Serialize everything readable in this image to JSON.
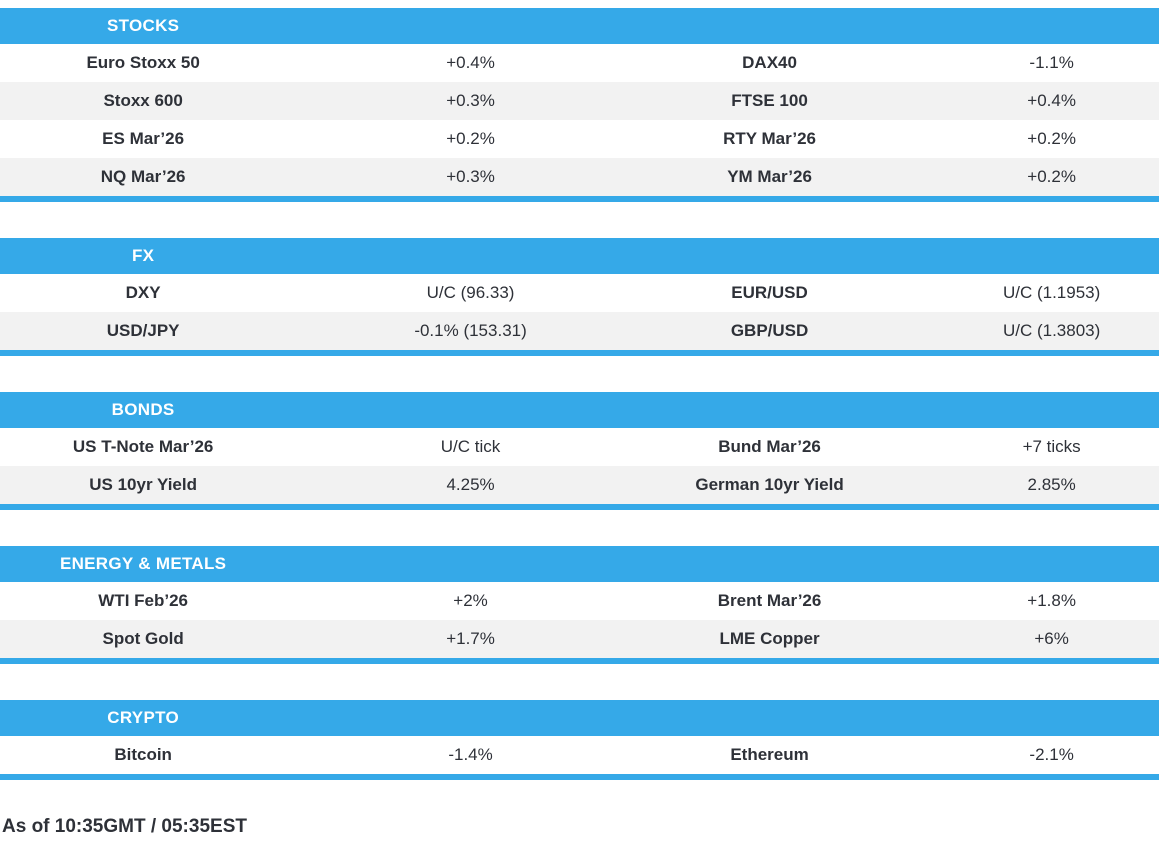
{
  "colors": {
    "accent_blue": "#35a9e8",
    "row_alt_gray": "#f2f2f2",
    "text_dark": "#2e3138",
    "header_text": "#ffffff"
  },
  "sections": [
    {
      "title": "STOCKS",
      "rows": [
        [
          "Euro Stoxx 50",
          "+0.4%",
          "DAX40",
          "-1.1%"
        ],
        [
          "Stoxx 600",
          "+0.3%",
          "FTSE 100",
          "+0.4%"
        ],
        [
          "ES Mar’26",
          "+0.2%",
          "RTY Mar’26",
          "+0.2%"
        ],
        [
          "NQ Mar’26",
          "+0.3%",
          "YM Mar’26",
          "+0.2%"
        ]
      ]
    },
    {
      "title": "FX",
      "rows": [
        [
          "DXY",
          "U/C (96.33)",
          "EUR/USD",
          "U/C (1.1953)"
        ],
        [
          "USD/JPY",
          "-0.1% (153.31)",
          "GBP/USD",
          "U/C (1.3803)"
        ]
      ]
    },
    {
      "title": "BONDS",
      "rows": [
        [
          "US T-Note Mar’26",
          "U/C tick",
          "Bund Mar’26",
          "+7 ticks"
        ],
        [
          "US 10yr Yield",
          "4.25%",
          "German 10yr Yield",
          "2.85%"
        ]
      ]
    },
    {
      "title": "ENERGY & METALS",
      "rows": [
        [
          "WTI Feb’26",
          "+2%",
          "Brent Mar’26",
          "+1.8%"
        ],
        [
          "Spot Gold",
          "+1.7%",
          "LME Copper",
          "+6%"
        ]
      ]
    },
    {
      "title": "CRYPTO",
      "rows": [
        [
          "Bitcoin",
          "-1.4%",
          "Ethereum",
          "-2.1%"
        ]
      ]
    }
  ],
  "footer": {
    "as_of": "As of 10:35GMT / 05:35EST"
  }
}
